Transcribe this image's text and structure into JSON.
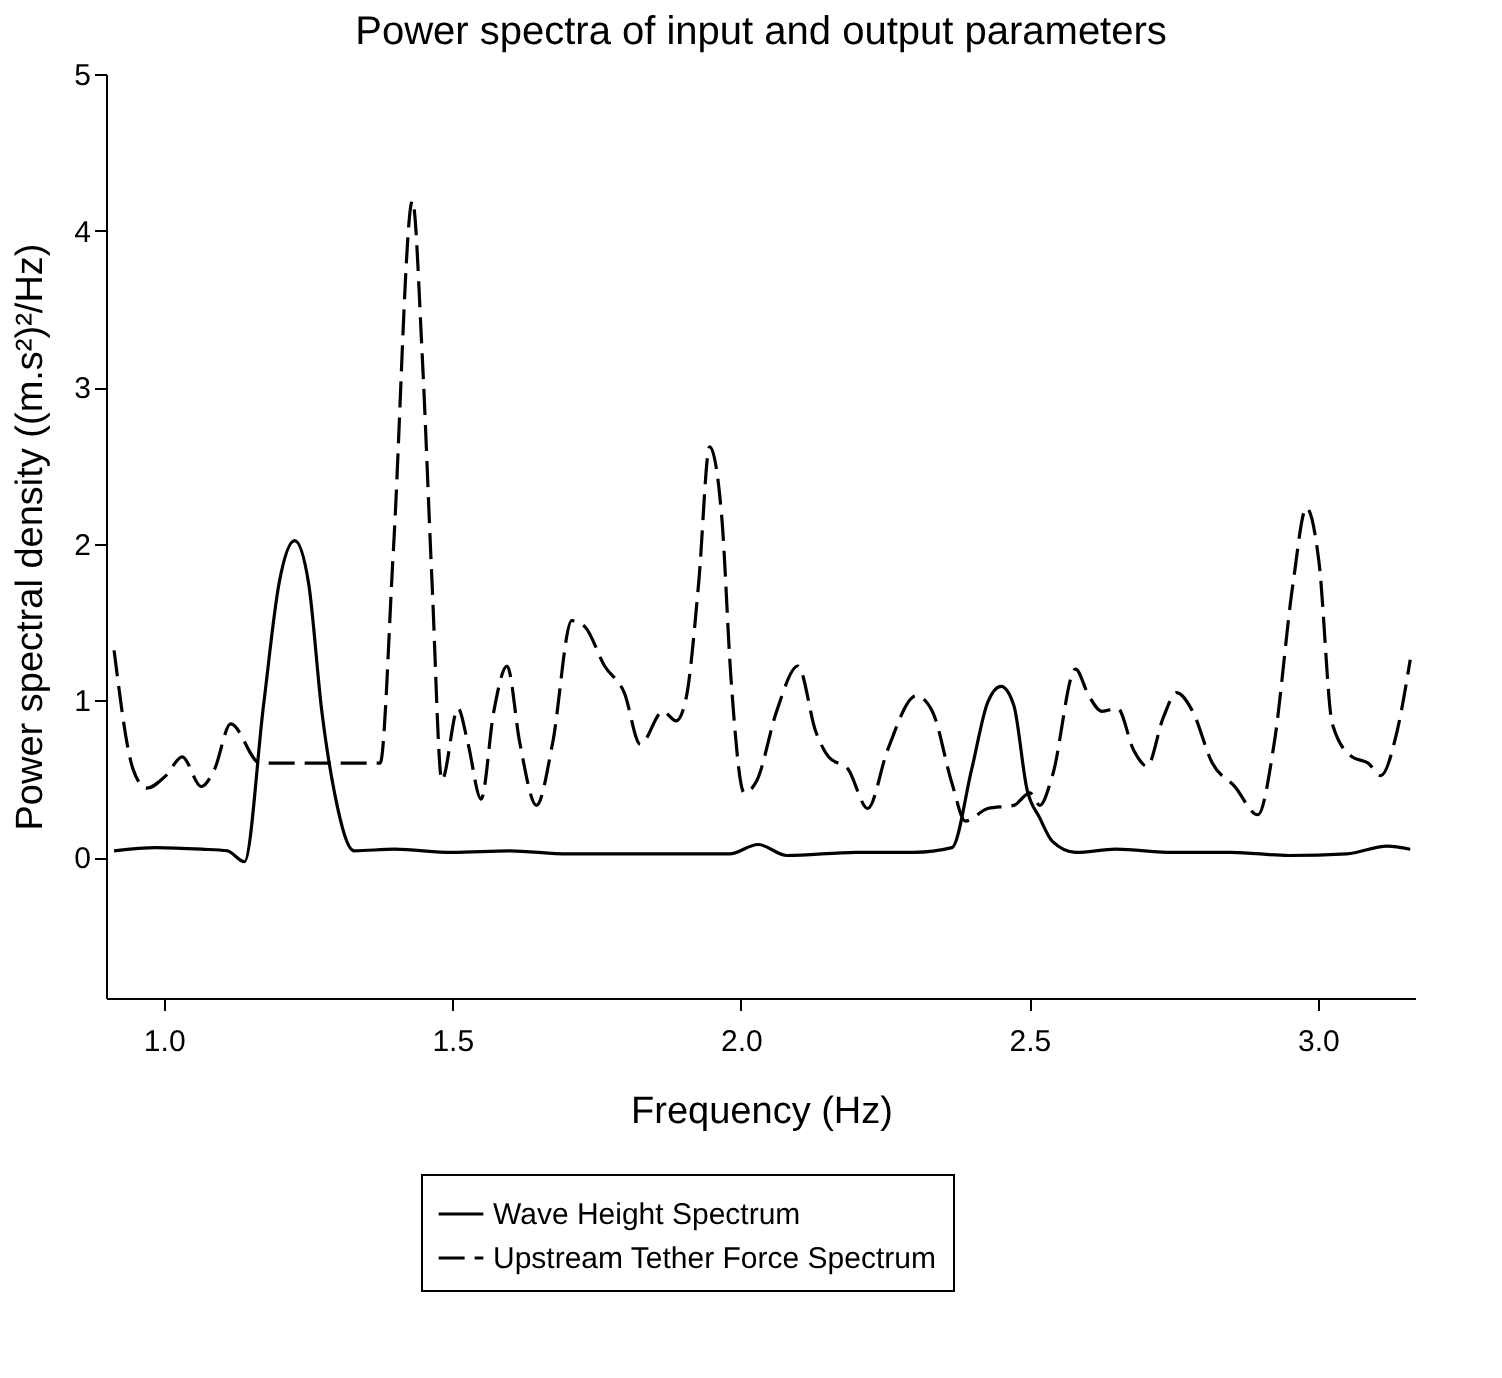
{
  "chart_data": {
    "type": "line",
    "title": "Power spectra of input and output parameters",
    "xlabel": "Frequency (Hz)",
    "ylabel": "Power spectral density ((m.s²)²/Hz)",
    "xlim": [
      0.9,
      3.17
    ],
    "ylim": [
      -0.9,
      5
    ],
    "xticks": [
      {
        "value": 1,
        "label": "1.0"
      },
      {
        "value": 1.5,
        "label": "1.5"
      },
      {
        "value": 2,
        "label": "2.0"
      },
      {
        "value": 2.5,
        "label": "2.5"
      },
      {
        "value": 3,
        "label": "3.0"
      }
    ],
    "yticks": [
      0,
      1,
      2,
      3,
      4,
      5
    ],
    "grid": false,
    "legend": "bottom",
    "series": [
      {
        "name": "Wave Height Spectrum",
        "color": "#000000",
        "line_style": "solid",
        "x": [
          0.914,
          0.987,
          1.066,
          1.11,
          1.14,
          1.173,
          1.2,
          1.227,
          1.251,
          1.274,
          1.296,
          1.33,
          1.4,
          1.5,
          1.6,
          1.7,
          1.8,
          1.9,
          1.98,
          2.03,
          2.08,
          2.2,
          2.3,
          2.366,
          2.4,
          2.428,
          2.451,
          2.473,
          2.496,
          2.518,
          2.54,
          2.58,
          2.65,
          2.75,
          2.85,
          2.95,
          3.05,
          3.12,
          3.16
        ],
        "values": [
          0.04,
          0.06,
          0.05,
          0.04,
          -0.03,
          0.97,
          1.75,
          2.02,
          1.75,
          0.93,
          0.41,
          0.04,
          0.05,
          0.03,
          0.04,
          0.02,
          0.02,
          0.02,
          0.02,
          0.08,
          0.01,
          0.03,
          0.03,
          0.06,
          0.56,
          0.99,
          1.09,
          0.97,
          0.43,
          0.25,
          0.1,
          0.03,
          0.05,
          0.03,
          0.03,
          0.01,
          0.02,
          0.07,
          0.05
        ]
      },
      {
        "name": "Upstream Tether Force Spectrum",
        "color": "#000000",
        "line_style": "dashed",
        "x": [
          0.914,
          0.947,
          0.97,
          1.004,
          1.032,
          1.065,
          1.088,
          1.116,
          1.167,
          1.358,
          1.375,
          1.398,
          1.431,
          1.448,
          1.465,
          1.482,
          1.51,
          1.527,
          1.55,
          1.572,
          1.595,
          1.617,
          1.646,
          1.674,
          1.707,
          1.73,
          1.764,
          1.798,
          1.826,
          1.865,
          1.888,
          1.905,
          1.927,
          1.946,
          1.967,
          1.983,
          2.006,
          2.028,
          2.062,
          2.099,
          2.13,
          2.152,
          2.186,
          2.22,
          2.254,
          2.304,
          2.332,
          2.366,
          2.389,
          2.428,
          2.473,
          2.501,
          2.518,
          2.54,
          2.58,
          2.603,
          2.626,
          2.653,
          2.681,
          2.704,
          2.732,
          2.755,
          2.783,
          2.817,
          2.856,
          2.896,
          2.924,
          2.957,
          2.98,
          3.002,
          3.025,
          3.059,
          3.087,
          3.109,
          3.137,
          3.16
        ],
        "values": [
          1.32,
          0.56,
          0.44,
          0.52,
          0.64,
          0.45,
          0.56,
          0.85,
          0.6,
          0.6,
          0.6,
          1.96,
          4.19,
          3.2,
          1.75,
          0.49,
          0.95,
          0.73,
          0.37,
          0.93,
          1.22,
          0.73,
          0.33,
          0.73,
          1.51,
          1.47,
          1.22,
          1.05,
          0.72,
          0.93,
          0.87,
          1.01,
          1.75,
          2.62,
          2.17,
          1.14,
          0.41,
          0.49,
          0.93,
          1.22,
          0.8,
          0.64,
          0.56,
          0.31,
          0.68,
          1.03,
          0.93,
          0.47,
          0.23,
          0.31,
          0.33,
          0.41,
          0.33,
          0.52,
          1.2,
          1.03,
          0.93,
          0.95,
          0.68,
          0.58,
          0.89,
          1.05,
          0.93,
          0.6,
          0.45,
          0.27,
          0.72,
          1.75,
          2.23,
          1.88,
          0.85,
          0.64,
          0.6,
          0.52,
          0.8,
          1.26
        ]
      }
    ]
  }
}
